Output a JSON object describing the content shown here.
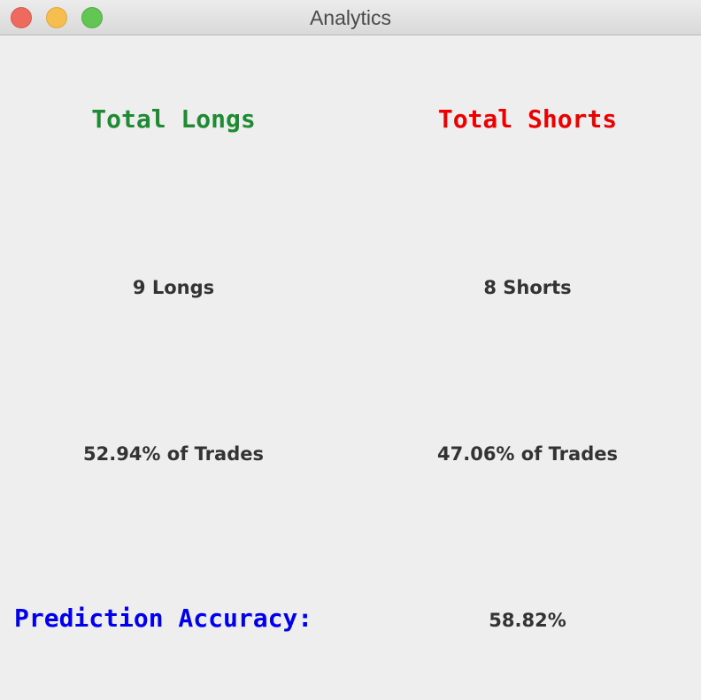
{
  "window": {
    "title": "Analytics"
  },
  "colors": {
    "longs": "#1e8a32",
    "shorts": "#ee0000",
    "accuracy": "#0000ee"
  },
  "longs": {
    "heading": "Total Longs",
    "count": "9 Longs",
    "percent": "52.94% of Trades"
  },
  "shorts": {
    "heading": "Total Shorts",
    "count": "8 Shorts",
    "percent": "47.06% of Trades"
  },
  "accuracy": {
    "label": "Prediction Accuracy:",
    "value": "58.82%"
  }
}
